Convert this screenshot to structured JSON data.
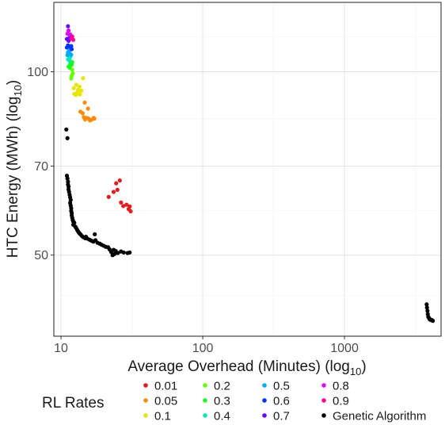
{
  "chart_data": {
    "type": "scatter",
    "xlabel": "Average Overhead (Minutes) (log",
    "xlabel_sub": "10",
    "xlabel_end": ")",
    "ylabel": "HTC Energy (MWh) (log",
    "ylabel_sub": "10",
    "ylabel_end": ")",
    "x_scale": "log10",
    "y_scale": "log10",
    "xlim": [
      8.9,
      4800
    ],
    "ylim": [
      36.8,
      130
    ],
    "x_ticks": [
      10,
      100,
      1000
    ],
    "x_tick_labels": [
      "10",
      "100",
      "1000"
    ],
    "y_ticks": [
      50,
      70,
      100
    ],
    "y_tick_labels": [
      "50",
      "70",
      "100"
    ],
    "grid": true,
    "legend": {
      "title": "RL Rates",
      "placement": "bottom"
    },
    "series": [
      {
        "name": "0.01",
        "color": "#e41a1c",
        "points": [
          [
            23.5,
            63.5
          ],
          [
            25,
            64
          ],
          [
            24.5,
            65.6
          ],
          [
            26,
            66.3
          ],
          [
            21.7,
            62.3
          ],
          [
            26.5,
            61
          ],
          [
            27.5,
            60.2
          ],
          [
            29,
            60.5
          ],
          [
            30.5,
            60.1
          ],
          [
            30,
            59.5
          ],
          [
            31,
            59
          ]
        ]
      },
      {
        "name": "0.05",
        "color": "#ff8c00",
        "points": [
          [
            13.7,
            86
          ],
          [
            14.2,
            85.5
          ],
          [
            14.5,
            84.2
          ],
          [
            14.8,
            83.5
          ],
          [
            15.2,
            84
          ],
          [
            15.6,
            83.8
          ],
          [
            16.0,
            83.2
          ],
          [
            16.5,
            83.5
          ],
          [
            17.0,
            84
          ],
          [
            17.2,
            83.8
          ],
          [
            15.5,
            87
          ],
          [
            14.7,
            89
          ]
        ]
      },
      {
        "name": "0.1",
        "color": "#e6e600",
        "points": [
          [
            12.4,
            92
          ],
          [
            12.7,
            91.6
          ],
          [
            13.0,
            92.3
          ],
          [
            13.3,
            92.0
          ],
          [
            13.6,
            91.8
          ],
          [
            13.2,
            93.4
          ],
          [
            13.9,
            93.1
          ],
          [
            12.3,
            94.0
          ],
          [
            13.5,
            94.5
          ],
          [
            12.8,
            95.2
          ],
          [
            14.3,
            97.6
          ]
        ]
      },
      {
        "name": "0.2",
        "color": "#66ff00",
        "points": [
          [
            11.8,
            97.5
          ],
          [
            11.9,
            98.5
          ],
          [
            12.1,
            99.4
          ],
          [
            12.0,
            100.8
          ]
        ]
      },
      {
        "name": "0.3",
        "color": "#1aff1a",
        "points": [
          [
            11.3,
            102.0
          ],
          [
            11.5,
            101.6
          ],
          [
            11.7,
            102.3
          ],
          [
            11.6,
            103.0
          ],
          [
            11.9,
            102.7
          ],
          [
            12.0,
            103.7
          ]
        ]
      },
      {
        "name": "0.4",
        "color": "#00e6b8",
        "points": [
          [
            11.2,
            104.8
          ],
          [
            11.5,
            104.3
          ],
          [
            11.6,
            105.6
          ]
        ]
      },
      {
        "name": "0.5",
        "color": "#00aaff",
        "points": [
          [
            11.1,
            106.5
          ],
          [
            11.2,
            107.6
          ],
          [
            11.4,
            108.2
          ],
          [
            11.6,
            107.0
          ],
          [
            11.8,
            106.6
          ]
        ]
      },
      {
        "name": "0.6",
        "color": "#0033ff",
        "points": [
          [
            11.0,
            109.6
          ],
          [
            11.2,
            110.5
          ],
          [
            11.6,
            109.8
          ],
          [
            11.8,
            110.2
          ],
          [
            11.9,
            108.9
          ]
        ]
      },
      {
        "name": "0.7",
        "color": "#6a00ff",
        "points": [
          [
            11.0,
            113.2
          ],
          [
            11.3,
            112.4
          ],
          [
            11.5,
            113.8
          ],
          [
            11.2,
            118.8
          ]
        ]
      },
      {
        "name": "0.8",
        "color": "#dd00ff",
        "points": [
          [
            11.1,
            115.5
          ],
          [
            11.3,
            116.9
          ],
          [
            11.6,
            115.2
          ]
        ]
      },
      {
        "name": "0.9",
        "color": "#ff0099",
        "points": [
          [
            11.8,
            113.3
          ],
          [
            12.0,
            114.3
          ],
          [
            12.2,
            112.8
          ]
        ]
      },
      {
        "name": "Genetic Algorithm",
        "color": "#000000",
        "points": [
          [
            10.9,
            80.4
          ],
          [
            11.1,
            77.8
          ],
          [
            11.0,
            67.5
          ],
          [
            11.1,
            66.8
          ],
          [
            11.2,
            66.0
          ],
          [
            11.2,
            65.3
          ],
          [
            11.3,
            64.8
          ],
          [
            11.3,
            64.1
          ],
          [
            11.4,
            63.5
          ],
          [
            11.5,
            62.8
          ],
          [
            11.6,
            62.2
          ],
          [
            11.7,
            61.6
          ],
          [
            11.6,
            60.9
          ],
          [
            11.7,
            60.3
          ],
          [
            11.8,
            59.7
          ],
          [
            11.8,
            59.1
          ],
          [
            11.9,
            58.6
          ],
          [
            11.9,
            58.1
          ],
          [
            12.0,
            57.6
          ],
          [
            12.1,
            57.1
          ],
          [
            12.2,
            56.8
          ],
          [
            12.4,
            56.5
          ],
          [
            12.2,
            56.1
          ],
          [
            12.6,
            55.7
          ],
          [
            12.8,
            55.4
          ],
          [
            13.0,
            55.0
          ],
          [
            13.2,
            54.7
          ],
          [
            13.4,
            54.4
          ],
          [
            13.6,
            54.2
          ],
          [
            13.8,
            54.0
          ],
          [
            14.1,
            53.7
          ],
          [
            14.4,
            53.5
          ],
          [
            14.8,
            53.3
          ],
          [
            15.0,
            53.6
          ],
          [
            15.4,
            53.2
          ],
          [
            15.9,
            53.0
          ],
          [
            16.4,
            52.8
          ],
          [
            16.9,
            52.6
          ],
          [
            17.5,
            52.9
          ],
          [
            17.3,
            54.1
          ],
          [
            18.1,
            52.4
          ],
          [
            18.8,
            52.2
          ],
          [
            19.3,
            52.0
          ],
          [
            20.0,
            51.8
          ],
          [
            20.7,
            51.6
          ],
          [
            21.5,
            51.5
          ],
          [
            22.0,
            51.1
          ],
          [
            22.6,
            50.6
          ],
          [
            23.5,
            51.0
          ],
          [
            24.3,
            50.8
          ],
          [
            25.2,
            50.4
          ],
          [
            26.5,
            50.7
          ],
          [
            27.7,
            50.5
          ],
          [
            29.5,
            50.4
          ],
          [
            30.5,
            50.5
          ],
          [
            23.1,
            50.0
          ],
          [
            23.8,
            50.2
          ],
          [
            3800,
            41.5
          ],
          [
            3820,
            41.0
          ],
          [
            3850,
            40.5
          ],
          [
            3870,
            40.0
          ],
          [
            3900,
            39.6
          ],
          [
            3950,
            39.4
          ],
          [
            4000,
            39.2
          ],
          [
            4050,
            39.2
          ],
          [
            4100,
            39.1
          ],
          [
            4150,
            39.1
          ],
          [
            4200,
            39.0
          ]
        ]
      }
    ]
  }
}
